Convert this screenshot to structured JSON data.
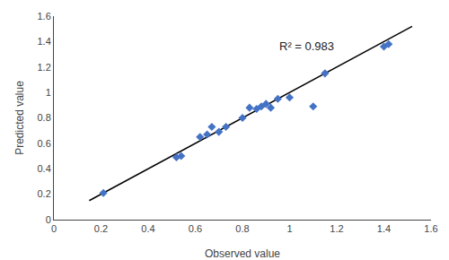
{
  "chart_data": {
    "type": "scatter",
    "xlabel": "Observed value",
    "ylabel": "Predicted value",
    "series": [
      {
        "type": "line",
        "color": "black",
        "line_style": "solid",
        "x": [
          0.15,
          1.52
        ],
        "values": [
          0.15,
          1.52
        ]
      },
      {
        "type": "scatter",
        "color": "#4472C4",
        "marker": "diamond",
        "x": [
          0.21,
          0.52,
          0.54,
          0.62,
          0.65,
          0.67,
          0.7,
          0.73,
          0.8,
          0.83,
          0.86,
          0.88,
          0.9,
          0.92,
          0.95,
          1.0,
          1.1,
          1.15,
          1.4,
          1.42
        ],
        "values": [
          0.21,
          0.49,
          0.5,
          0.65,
          0.67,
          0.73,
          0.69,
          0.73,
          0.8,
          0.88,
          0.87,
          0.89,
          0.91,
          0.88,
          0.95,
          0.96,
          0.89,
          1.15,
          1.36,
          1.38
        ]
      }
    ],
    "annotations": [
      {
        "text": "R² = 0.983",
        "x": 0.95,
        "y": 1.43
      }
    ],
    "xlim": [
      0,
      1.6
    ],
    "ylim": [
      0,
      1.6
    ],
    "xticks": [
      0,
      0.2,
      0.4,
      0.6,
      0.8,
      1,
      1.2,
      1.4,
      1.6
    ],
    "yticks": [
      0,
      0.2,
      0.4,
      0.6,
      0.8,
      1,
      1.2,
      1.4,
      1.6
    ],
    "grid": false,
    "legend": false
  }
}
